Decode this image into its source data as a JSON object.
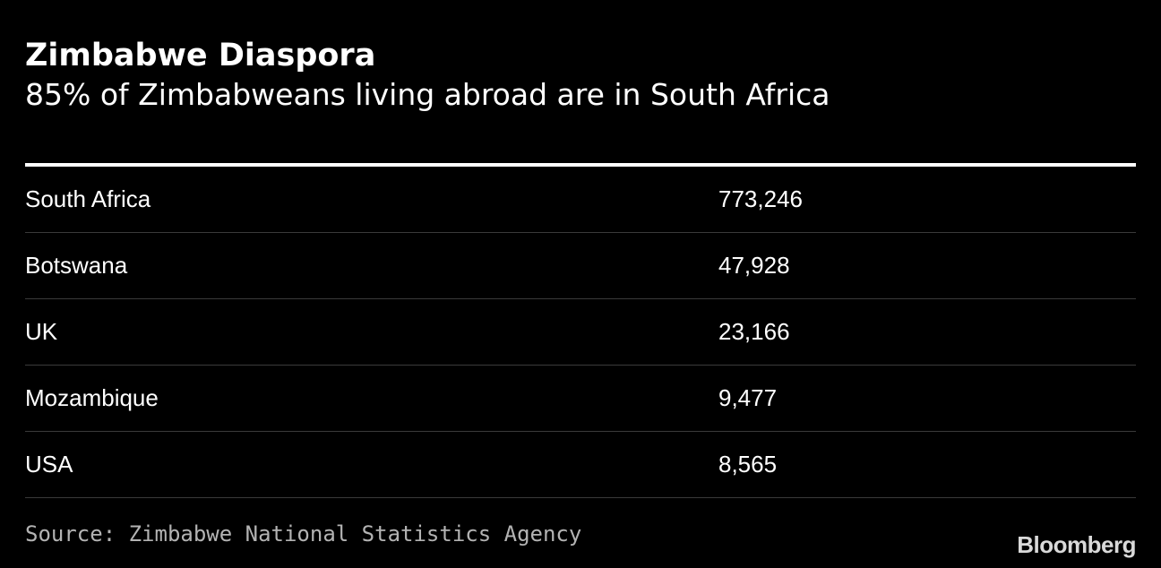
{
  "chart_data": {
    "type": "table",
    "title": "Zimbabwe Diaspora",
    "subtitle": "85% of Zimbabweans living abroad are in South Africa",
    "rows": [
      {
        "country": "South Africa",
        "value": "773,246"
      },
      {
        "country": "Botswana",
        "value": "47,928"
      },
      {
        "country": "UK",
        "value": "23,166"
      },
      {
        "country": "Mozambique",
        "value": "9,477"
      },
      {
        "country": "USA",
        "value": "8,565"
      }
    ],
    "values": [
      773246,
      47928,
      23166,
      9477,
      8565
    ]
  },
  "footer": {
    "source": "Source: Zimbabwe National Statistics Agency",
    "brand": "Bloomberg"
  },
  "colors": {
    "background": "#000000",
    "text": "#ffffff",
    "rule": "#ffffff",
    "separator": "#3a3a3a",
    "source_text": "#b3b3b3"
  }
}
